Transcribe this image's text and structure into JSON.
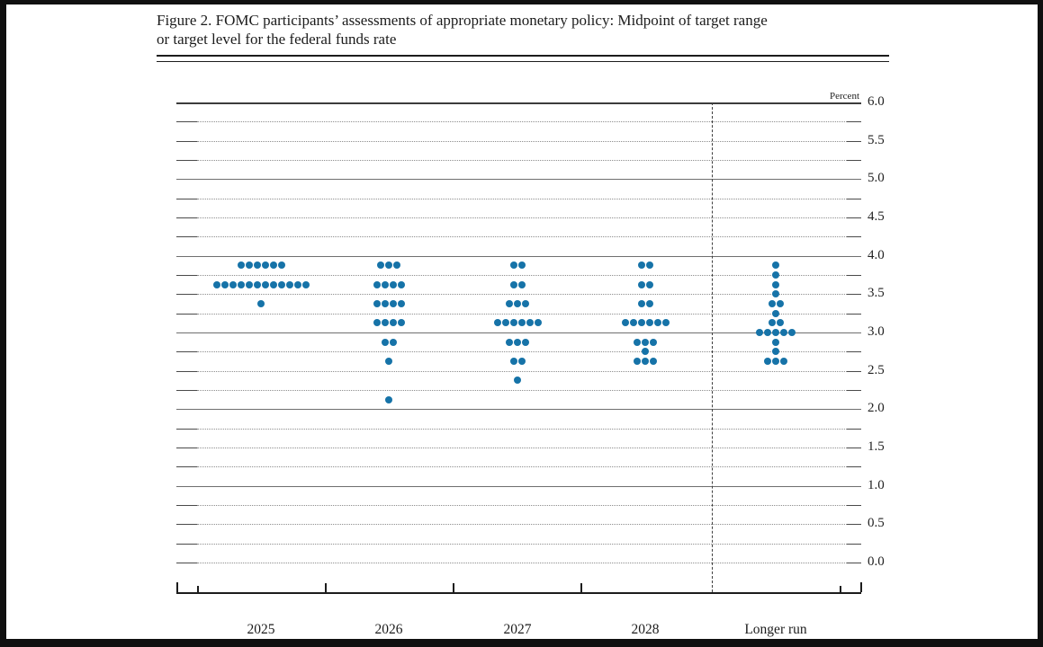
{
  "figure": {
    "title_line1": "Figure 2. FOMC participants’ assessments of appropriate monetary policy: Midpoint of target range",
    "title_line2": "or target level for the federal funds rate"
  },
  "chart_data": {
    "type": "scatter",
    "subtype": "fomc-dot-plot",
    "title": "Figure 2. FOMC participants’ assessments of appropriate monetary policy: Midpoint of target range or target level for the federal funds rate",
    "unit_label": "Percent",
    "y_axis": {
      "min": 0.0,
      "max": 6.0,
      "label_step": 0.5,
      "grid_step": 0.25,
      "tick_labels": [
        "6.0",
        "5.5",
        "5.0",
        "4.5",
        "4.0",
        "3.5",
        "3.0",
        "2.5",
        "2.0",
        "1.5",
        "1.0",
        "0.5",
        "0.0"
      ]
    },
    "categories": [
      "2025",
      "2026",
      "2027",
      "2028",
      "Longer run"
    ],
    "columns": [
      {
        "label": "2025",
        "dots": [
          {
            "rate": 3.875,
            "count": 6
          },
          {
            "rate": 3.625,
            "count": 12
          },
          {
            "rate": 3.375,
            "count": 1
          }
        ]
      },
      {
        "label": "2026",
        "dots": [
          {
            "rate": 3.875,
            "count": 3
          },
          {
            "rate": 3.625,
            "count": 4
          },
          {
            "rate": 3.375,
            "count": 4
          },
          {
            "rate": 3.125,
            "count": 4
          },
          {
            "rate": 2.875,
            "count": 2
          },
          {
            "rate": 2.625,
            "count": 1
          },
          {
            "rate": 2.125,
            "count": 1
          }
        ]
      },
      {
        "label": "2027",
        "dots": [
          {
            "rate": 3.875,
            "count": 2
          },
          {
            "rate": 3.625,
            "count": 2
          },
          {
            "rate": 3.375,
            "count": 3
          },
          {
            "rate": 3.125,
            "count": 6
          },
          {
            "rate": 2.875,
            "count": 3
          },
          {
            "rate": 2.625,
            "count": 2
          },
          {
            "rate": 2.375,
            "count": 1
          }
        ]
      },
      {
        "label": "2028",
        "dots": [
          {
            "rate": 3.875,
            "count": 2
          },
          {
            "rate": 3.625,
            "count": 2
          },
          {
            "rate": 3.375,
            "count": 2
          },
          {
            "rate": 3.125,
            "count": 6
          },
          {
            "rate": 2.875,
            "count": 3
          },
          {
            "rate": 2.75,
            "count": 1
          },
          {
            "rate": 2.625,
            "count": 3
          }
        ]
      },
      {
        "label": "Longer run",
        "dots": [
          {
            "rate": 3.875,
            "count": 1
          },
          {
            "rate": 3.75,
            "count": 1
          },
          {
            "rate": 3.625,
            "count": 1
          },
          {
            "rate": 3.5,
            "count": 1
          },
          {
            "rate": 3.375,
            "count": 2
          },
          {
            "rate": 3.25,
            "count": 1
          },
          {
            "rate": 3.125,
            "count": 2
          },
          {
            "rate": 3.0,
            "count": 5
          },
          {
            "rate": 2.875,
            "count": 1
          },
          {
            "rate": 2.75,
            "count": 1
          },
          {
            "rate": 2.625,
            "count": 3
          }
        ]
      }
    ],
    "dot_color": "#1673a8",
    "grid": "on",
    "legend": "none"
  }
}
